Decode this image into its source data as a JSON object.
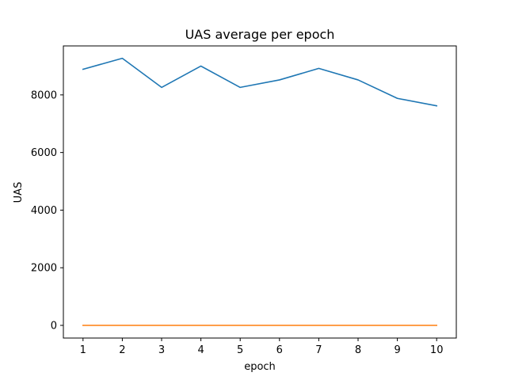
{
  "chart_data": {
    "type": "line",
    "title": "UAS average per epoch",
    "xlabel": "epoch",
    "ylabel": "UAS",
    "x": [
      1,
      2,
      3,
      4,
      5,
      6,
      7,
      8,
      9,
      10
    ],
    "xlim": [
      0.5,
      10.5
    ],
    "ylim": [
      -440,
      9700
    ],
    "xticks": [
      "1",
      "2",
      "3",
      "4",
      "5",
      "6",
      "7",
      "8",
      "9",
      "10"
    ],
    "yticks": [
      {
        "value": 0,
        "label": "0"
      },
      {
        "value": 2000,
        "label": "2000"
      },
      {
        "value": 4000,
        "label": "4000"
      },
      {
        "value": 6000,
        "label": "6000"
      },
      {
        "value": 8000,
        "label": "8000"
      }
    ],
    "grid": false,
    "series": [
      {
        "color": "#1f77b4",
        "values": [
          8890,
          9270,
          8260,
          9000,
          8260,
          8520,
          8920,
          8520,
          7880,
          7620
        ]
      },
      {
        "color": "#ff7f0e",
        "values": [
          0,
          0,
          0,
          0,
          0,
          0,
          0,
          0,
          0,
          0
        ]
      }
    ]
  }
}
